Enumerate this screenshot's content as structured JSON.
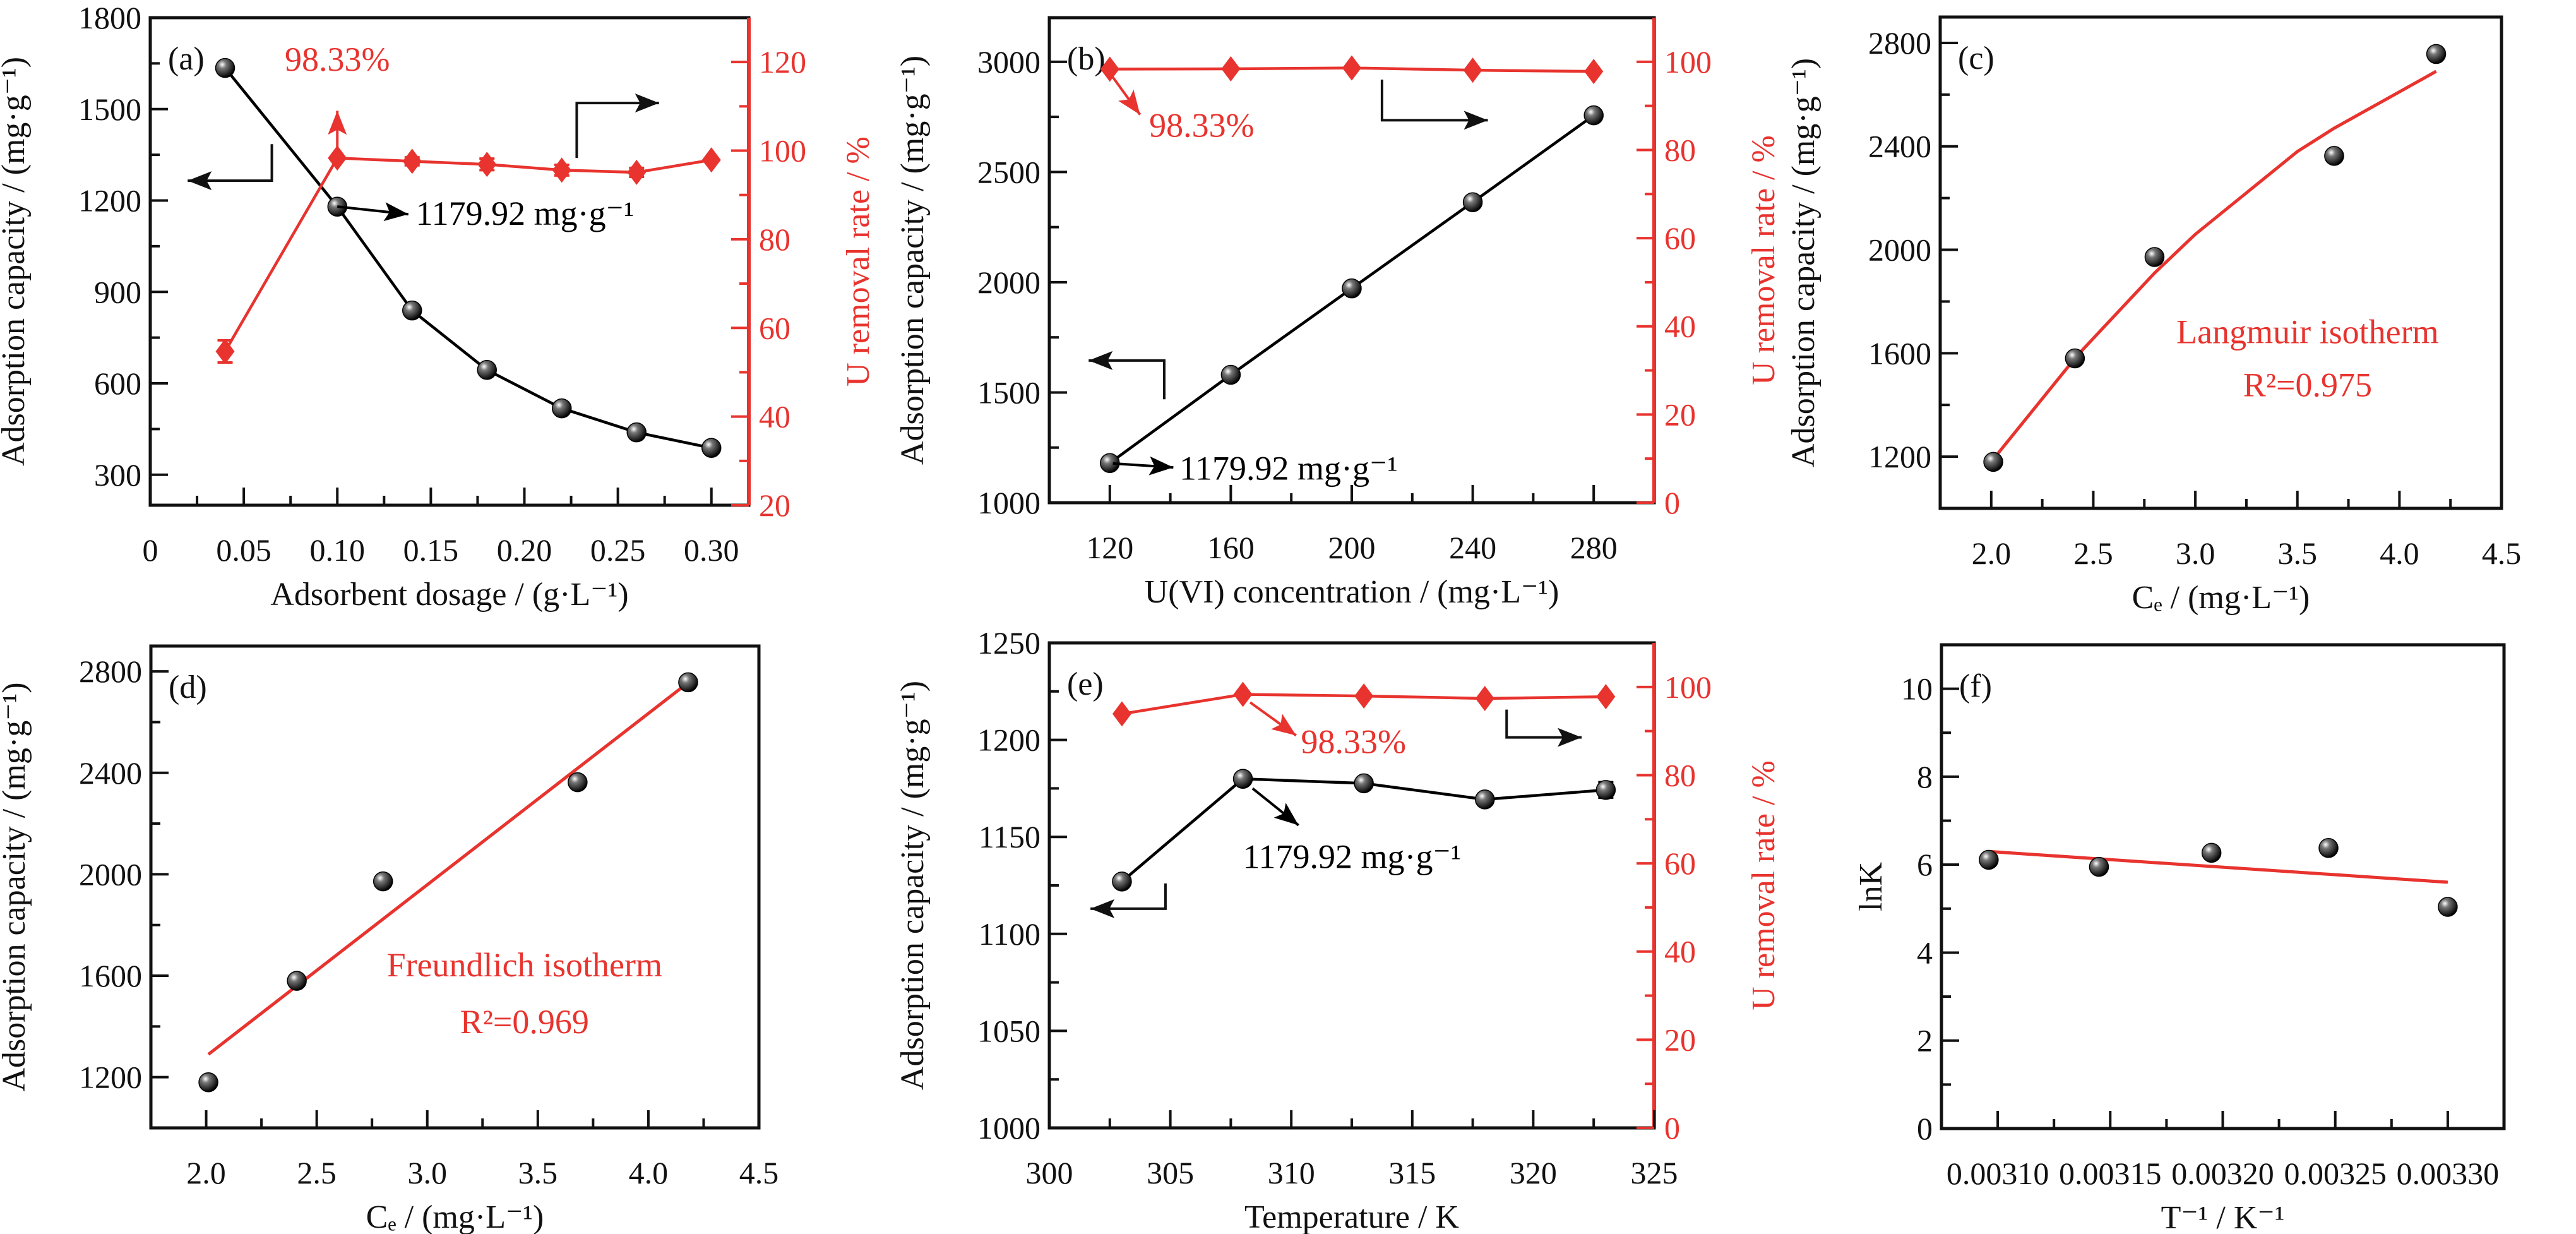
{
  "colors": {
    "capacity": "#000000",
    "removal": "#e8332e",
    "fit": "#e8332e"
  },
  "chart_data": [
    {
      "panel": "(a)",
      "type": "line",
      "x_label": "Adsorbent dosage / (g·L⁻¹)",
      "y_label": "Adsorption capacity / (mg·g⁻¹)",
      "y2_label": "U removal rate / %",
      "xlim": [
        0,
        0.32
      ],
      "ylim": [
        200,
        1800
      ],
      "y2lim": [
        20,
        130
      ],
      "xticks": [
        0,
        0.05,
        0.1,
        0.15,
        0.2,
        0.25,
        0.3
      ],
      "xtick_labels": [
        "0",
        "0.05",
        "0.10",
        "0.15",
        "0.20",
        "0.25",
        "0.30"
      ],
      "yticks": [
        300,
        600,
        900,
        1200,
        1500,
        1800
      ],
      "ytick_labels": [
        "300",
        "600",
        "900",
        "1200",
        "1500",
        "1800"
      ],
      "y2ticks": [
        20,
        40,
        60,
        80,
        100,
        120
      ],
      "y2tick_labels": [
        "20",
        "40",
        "60",
        "80",
        "100",
        "120"
      ],
      "grid": false,
      "series": [
        {
          "axis": "left",
          "color": "#000000",
          "marker": "sphere",
          "x": [
            0.04,
            0.1,
            0.14,
            0.18,
            0.22,
            0.26,
            0.3
          ],
          "y": [
            1635,
            1179.92,
            839,
            644,
            518,
            439,
            388
          ],
          "yerr": [
            0,
            0,
            0,
            0,
            0,
            0,
            0
          ]
        },
        {
          "axis": "right",
          "color": "#e8332e",
          "marker": "diamond",
          "x": [
            0.04,
            0.1,
            0.14,
            0.18,
            0.22,
            0.26,
            0.3
          ],
          "y": [
            54.7,
            98.33,
            97.6,
            96.9,
            95.6,
            95.1,
            97.9
          ],
          "yerr": [
            2.5,
            0,
            0.9,
            1.3,
            1.2,
            1.0,
            0
          ]
        }
      ],
      "annotations": [
        {
          "text": "98.33%",
          "color": "#e8332e"
        },
        {
          "text": "1179.92 mg·g⁻¹",
          "color": "#000000"
        }
      ]
    },
    {
      "panel": "(b)",
      "type": "line",
      "x_label": "U(VI) concentration / (mg·L⁻¹)",
      "y_label": "Adsorption capacity / (mg·g⁻¹)",
      "y2_label": "U removal rate / %",
      "xlim": [
        100,
        300
      ],
      "ylim": [
        1000,
        3200
      ],
      "y2lim": [
        0,
        110
      ],
      "xticks": [
        120,
        160,
        200,
        240,
        280
      ],
      "xtick_labels": [
        "120",
        "160",
        "200",
        "240",
        "280"
      ],
      "yticks": [
        1000,
        1500,
        2000,
        2500,
        3000
      ],
      "ytick_labels": [
        "1000",
        "1500",
        "2000",
        "2500",
        "3000"
      ],
      "y2ticks": [
        0,
        20,
        40,
        60,
        80,
        100
      ],
      "y2tick_labels": [
        "0",
        "20",
        "40",
        "60",
        "80",
        "100"
      ],
      "grid": false,
      "series": [
        {
          "axis": "left",
          "color": "#000000",
          "marker": "sphere",
          "x": [
            120,
            160,
            200,
            240,
            280
          ],
          "y": [
            1179.92,
            1580,
            1972,
            2363,
            2757
          ],
          "yerr": [
            0,
            0,
            0,
            0,
            0
          ]
        },
        {
          "axis": "right",
          "color": "#e8332e",
          "marker": "diamond",
          "x": [
            120,
            160,
            200,
            240,
            280
          ],
          "y": [
            98.33,
            98.4,
            98.6,
            98.1,
            97.8
          ],
          "yerr": [
            0,
            0,
            0,
            0,
            0
          ]
        }
      ],
      "annotations": [
        {
          "text": "98.33%",
          "color": "#e8332e"
        },
        {
          "text": "1179.92 mg·g⁻¹",
          "color": "#000000"
        }
      ]
    },
    {
      "panel": "(c)",
      "type": "scatter",
      "x_label": "Cₑ / (mg·L⁻¹)",
      "y_label": "Adsorption capacity / (mg·g⁻¹)",
      "xlim": [
        1.75,
        4.5
      ],
      "ylim": [
        1000,
        2900
      ],
      "xticks": [
        2.0,
        2.5,
        3.0,
        3.5,
        4.0,
        4.5
      ],
      "xtick_labels": [
        "2.0",
        "2.5",
        "3.0",
        "3.5",
        "4.0",
        "4.5"
      ],
      "yticks": [
        1200,
        1600,
        2000,
        2400,
        2800
      ],
      "ytick_labels": [
        "1200",
        "1600",
        "2000",
        "2400",
        "2800"
      ],
      "grid": false,
      "series": [
        {
          "axis": "left",
          "color": "#000000",
          "marker": "sphere",
          "x": [
            2.01,
            2.41,
            2.8,
            3.68,
            4.18
          ],
          "y": [
            1179.92,
            1580,
            1972,
            2363,
            2757
          ],
          "yerr": [
            0,
            0,
            0,
            0,
            0
          ]
        }
      ],
      "fit": {
        "color": "#e8332e",
        "x": [
          2.01,
          2.42,
          2.8,
          3.0,
          3.5,
          3.68,
          4.18
        ],
        "y": [
          1190,
          1590,
          1910,
          2060,
          2380,
          2470,
          2690
        ]
      },
      "annotations": [
        {
          "text": "Langmuir isotherm",
          "color": "#e8332e"
        },
        {
          "text": "R²=0.975",
          "color": "#e8332e"
        }
      ]
    },
    {
      "panel": "(d)",
      "type": "scatter",
      "x_label": "Cₑ / (mg·L⁻¹)",
      "y_label": "Adsorption capacity / (mg·g⁻¹)",
      "xlim": [
        1.75,
        4.5
      ],
      "ylim": [
        1000,
        2900
      ],
      "xticks": [
        2.0,
        2.5,
        3.0,
        3.5,
        4.0,
        4.5
      ],
      "xtick_labels": [
        "2.0",
        "2.5",
        "3.0",
        "3.5",
        "4.0",
        "4.5"
      ],
      "yticks": [
        1200,
        1600,
        2000,
        2400,
        2800
      ],
      "ytick_labels": [
        "1200",
        "1600",
        "2000",
        "2400",
        "2800"
      ],
      "grid": false,
      "series": [
        {
          "axis": "left",
          "color": "#000000",
          "marker": "sphere",
          "x": [
            2.01,
            2.41,
            2.8,
            3.68,
            4.18
          ],
          "y": [
            1179.92,
            1580,
            1972,
            2363,
            2757
          ],
          "yerr": [
            0,
            0,
            0,
            0,
            0
          ]
        }
      ],
      "fit": {
        "color": "#e8332e",
        "x": [
          2.01,
          4.17
        ],
        "y": [
          1290,
          2749
        ]
      },
      "annotations": [
        {
          "text": "Freundlich isotherm",
          "color": "#e8332e"
        },
        {
          "text": "R²=0.969",
          "color": "#e8332e"
        }
      ]
    },
    {
      "panel": "(e)",
      "type": "line",
      "x_label": "Temperature / K",
      "y_label": "Adsorption capacity / (mg·g⁻¹)",
      "y2_label": "U removal rate / %",
      "xlim": [
        300,
        325
      ],
      "ylim": [
        1000,
        1250
      ],
      "y2lim": [
        0,
        110
      ],
      "xticks": [
        300,
        305,
        310,
        315,
        320,
        325
      ],
      "xtick_labels": [
        "300",
        "305",
        "310",
        "315",
        "320",
        "325"
      ],
      "yticks": [
        1000,
        1050,
        1100,
        1150,
        1200,
        1250
      ],
      "ytick_labels": [
        "1000",
        "1050",
        "1100",
        "1150",
        "1200",
        "1250"
      ],
      "y2ticks": [
        0,
        20,
        40,
        60,
        80,
        100
      ],
      "y2tick_labels": [
        "0",
        "20",
        "40",
        "60",
        "80",
        "100"
      ],
      "grid": false,
      "series": [
        {
          "axis": "left",
          "color": "#000000",
          "marker": "sphere",
          "x": [
            303,
            308,
            313,
            318,
            323
          ],
          "y": [
            1127,
            1179.92,
            1177.6,
            1169.3,
            1174.2
          ],
          "yerr": [
            1.2,
            0,
            1.0,
            1.2,
            4.0
          ]
        },
        {
          "axis": "right",
          "color": "#e8332e",
          "marker": "diamond",
          "x": [
            303,
            308,
            313,
            318,
            323
          ],
          "y": [
            93.9,
            98.33,
            97.95,
            97.4,
            97.8
          ],
          "yerr": [
            0,
            0,
            0,
            0,
            0
          ]
        }
      ],
      "annotations": [
        {
          "text": "98.33%",
          "color": "#e8332e"
        },
        {
          "text": "1179.92 mg·g⁻¹",
          "color": "#000000"
        }
      ]
    },
    {
      "panel": "(f)",
      "type": "scatter",
      "x_label": "T⁻¹ / K⁻¹",
      "y_label": "lnK",
      "xlim": [
        0.003075,
        0.003325
      ],
      "ylim": [
        0,
        11
      ],
      "xticks": [
        0.0031,
        0.00315,
        0.0032,
        0.00325,
        0.0033
      ],
      "xtick_labels": [
        "0.00310",
        "0.00315",
        "0.00320",
        "0.00325",
        "0.00330"
      ],
      "yticks": [
        0,
        2,
        4,
        6,
        8,
        10
      ],
      "ytick_labels": [
        "0",
        "2",
        "4",
        "6",
        "8",
        "10"
      ],
      "grid": false,
      "series": [
        {
          "axis": "left",
          "color": "#000000",
          "marker": "sphere",
          "x": [
            0.003096,
            0.003145,
            0.003195,
            0.003247,
            0.0033
          ],
          "y": [
            6.11,
            5.95,
            6.27,
            6.38,
            5.04
          ],
          "yerr": [
            0,
            0,
            0,
            0,
            0
          ]
        }
      ],
      "fit": {
        "color": "#e8332e",
        "x": [
          0.003096,
          0.0033
        ],
        "y": [
          6.3,
          5.6
        ]
      },
      "annotations": []
    }
  ]
}
